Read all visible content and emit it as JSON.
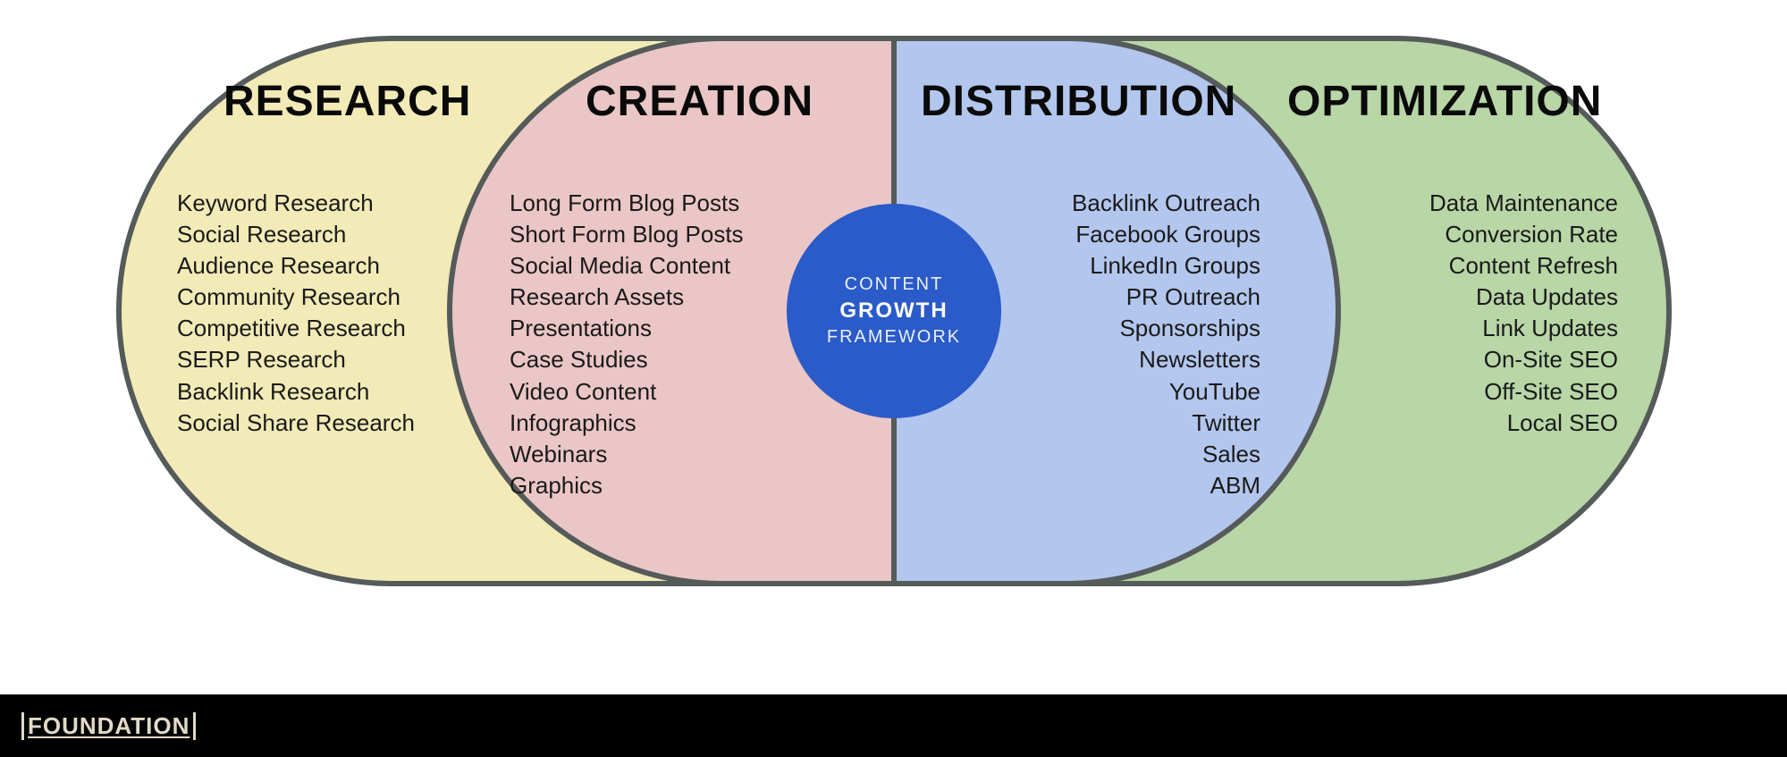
{
  "colors": {
    "border": "#555a5a",
    "research_fill": "#f2ebb7",
    "creation_fill": "#ebc6c6",
    "distribution_fill": "#b3c6ed",
    "optimization_fill": "#b8d6a6",
    "center_fill": "#2a5bc9",
    "footer_bg": "#000000",
    "footer_text": "#e3d9c8",
    "text": "#0a0a0a"
  },
  "center": {
    "line1": "CONTENT",
    "line2": "GROWTH",
    "line3": "FRAMEWORK"
  },
  "sections": {
    "research": {
      "title": "RESEARCH",
      "items": [
        "Keyword Research",
        "Social Research",
        "Audience Research",
        "Community Research",
        "Competitive Research",
        "SERP Research",
        "Backlink Research",
        "Social Share Research"
      ]
    },
    "creation": {
      "title": "CREATION",
      "items": [
        "Long Form Blog Posts",
        "Short Form Blog Posts",
        "Social Media Content",
        "Research Assets",
        "Presentations",
        "Case Studies",
        "Video Content",
        "Infographics",
        "Webinars",
        "Graphics"
      ]
    },
    "distribution": {
      "title": "DISTRIBUTION",
      "items": [
        "Backlink Outreach",
        "Facebook Groups",
        "LinkedIn Groups",
        "PR Outreach",
        "Sponsorships",
        "Newsletters",
        "YouTube",
        "Twitter",
        "Sales",
        "ABM"
      ]
    },
    "optimization": {
      "title": "OPTIMIZATION",
      "items": [
        "Data Maintenance",
        "Conversion Rate",
        "Content Refresh",
        "Data Updates",
        "Link Updates",
        "On-Site SEO",
        "Off-Site SEO",
        "Local SEO"
      ]
    }
  },
  "footer": {
    "brand": "FOUNDATION"
  }
}
